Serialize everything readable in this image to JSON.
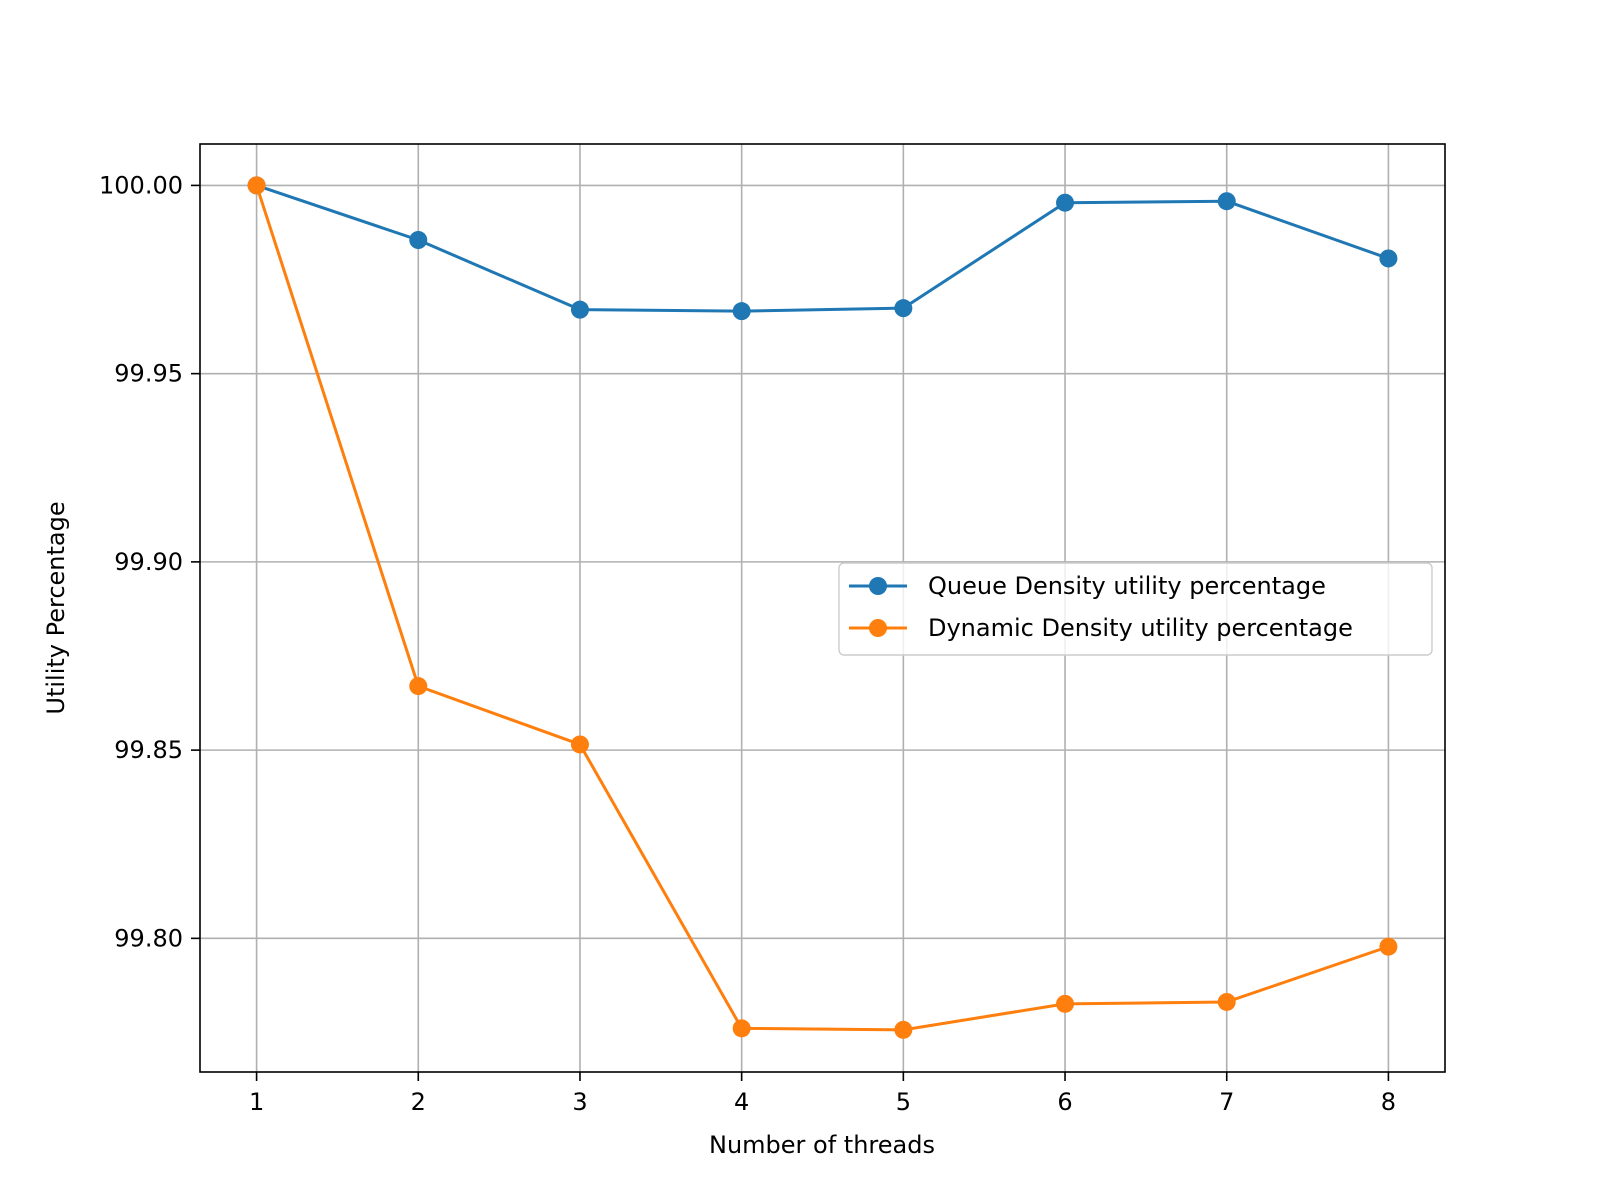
{
  "chart_data": {
    "type": "line",
    "title": "",
    "xlabel": "Number of threads",
    "ylabel": "Utility Percentage",
    "x": [
      1,
      2,
      3,
      4,
      5,
      6,
      7,
      8
    ],
    "x_ticks": [
      "1",
      "2",
      "3",
      "4",
      "5",
      "6",
      "7",
      "8"
    ],
    "y_ticks": [
      "99.80",
      "99.85",
      "99.90",
      "99.95",
      "100.00"
    ],
    "xlim": [
      0.65,
      8.35
    ],
    "ylim": [
      99.7645,
      100.011
    ],
    "grid": true,
    "legend_position": "center-right",
    "series": [
      {
        "name": "Queue Density utility percentage",
        "color": "#1f77b4",
        "values": [
          100.0,
          99.9855,
          99.967,
          99.9666,
          99.9674,
          99.9954,
          99.9958,
          99.9806
        ]
      },
      {
        "name": "Dynamic Density utility percentage",
        "color": "#ff7f0e",
        "values": [
          100.0,
          99.867,
          99.8515,
          99.7761,
          99.7757,
          99.7826,
          99.7831,
          99.7978
        ]
      }
    ]
  }
}
